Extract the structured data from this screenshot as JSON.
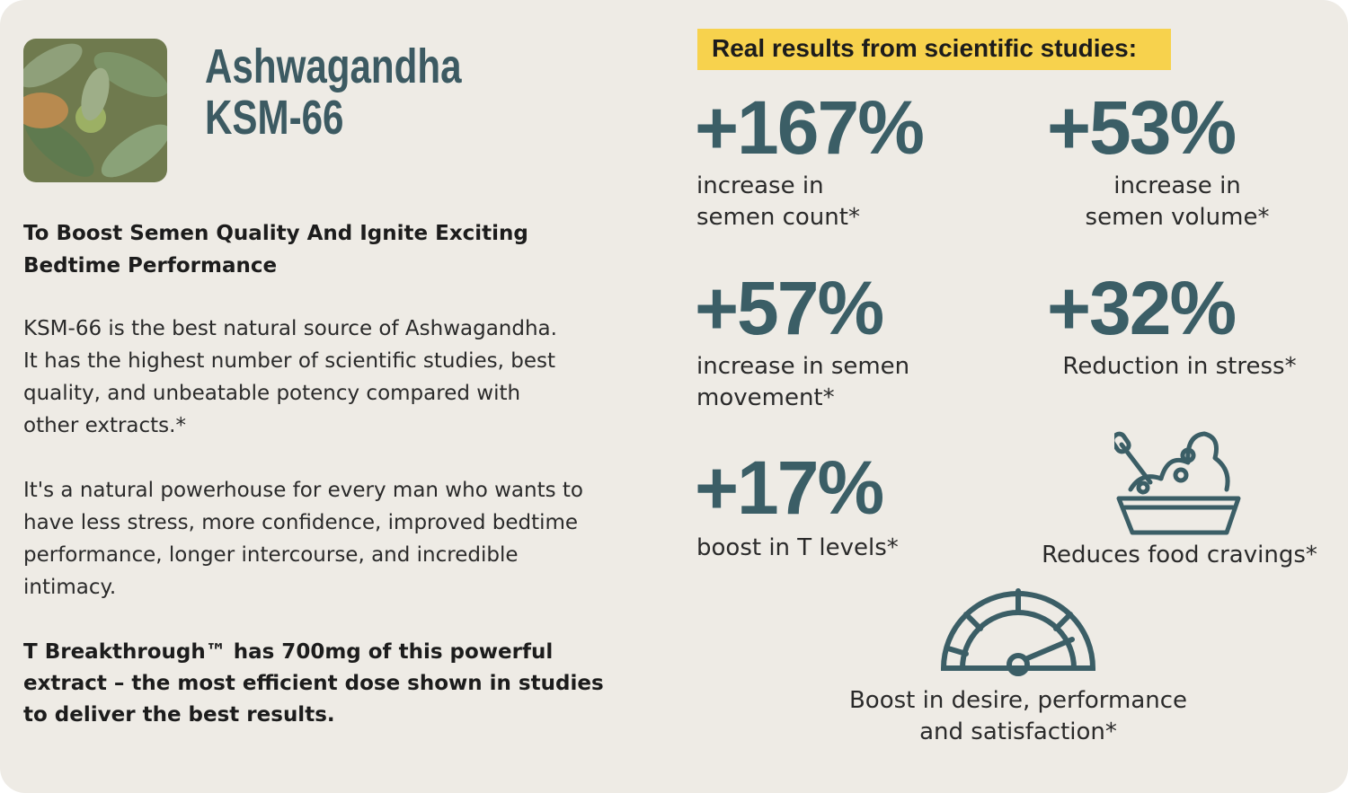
{
  "header": {
    "title_lines": [
      "Ashwagandha",
      "KSM-66"
    ]
  },
  "left": {
    "subtitle": "To Boost Semen Quality And Ignite Exciting\nBedtime Performance",
    "paragraphs": [
      "KSM-66 is the best natural source of Ashwagandha.\nIt has the highest number of scientific studies, best\nquality, and unbeatable potency compared with\nother extracts.*",
      "It's a natural powerhouse for every man who wants to\nhave less stress, more confidence, improved bedtime\nperformance, longer intercourse, and incredible\nintimacy."
    ],
    "closing": "T Breakthrough™ has 700mg of this powerful\nextract – the most efficient dose shown in studies\nto deliver the best results."
  },
  "results": {
    "heading": "Real results from scientific studies:",
    "stats": [
      {
        "value": "+167%",
        "label": "increase in\nsemen count*"
      },
      {
        "value": "+53%",
        "label": "increase in\nsemen volume*"
      },
      {
        "value": "+57%",
        "label": "increase in semen\nmovement*"
      },
      {
        "value": "+32%",
        "label": "Reduction in stress*"
      },
      {
        "value": "+17%",
        "label": "boost in T levels*"
      }
    ],
    "icon_items": [
      {
        "label": "Reduces food cravings*"
      },
      {
        "label": "Boost in desire, performance\nand satisfaction*"
      }
    ]
  }
}
